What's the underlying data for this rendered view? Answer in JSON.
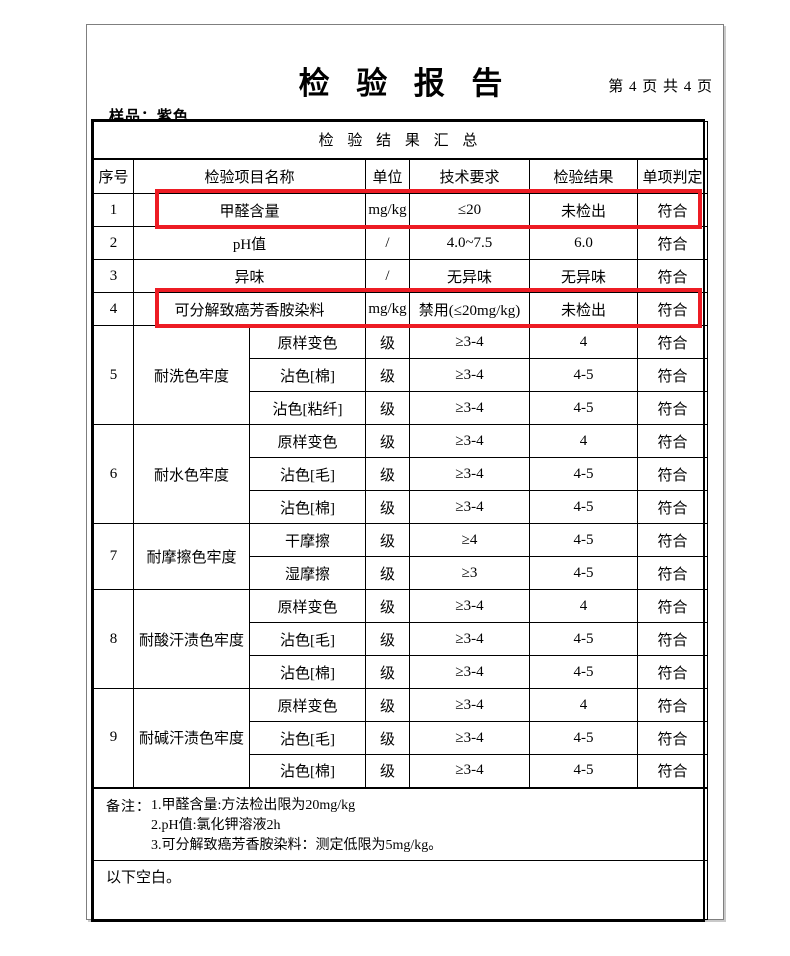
{
  "header": {
    "title": "检 验 报 告",
    "page_info": "第 4 页 共 4 页",
    "sample_label": "样品：紫色"
  },
  "table": {
    "title": "检 验 结 果 汇 总",
    "headers": [
      "序号",
      "检验项目名称",
      "单位",
      "技术要求",
      "检验结果",
      "单项判定"
    ],
    "rows": [
      {
        "no": "1",
        "name": "甲醛含量",
        "unit": "mg/kg",
        "requirement": "≤20",
        "result": "未检出",
        "judgment": "符合",
        "highlight": true
      },
      {
        "no": "2",
        "name": "pH值",
        "unit": "/",
        "requirement": "4.0~7.5",
        "result": "6.0",
        "judgment": "符合"
      },
      {
        "no": "3",
        "name": "异味",
        "unit": "/",
        "requirement": "无异味",
        "result": "无异味",
        "judgment": "符合"
      },
      {
        "no": "4",
        "name": "可分解致癌芳香胺染料",
        "unit": "mg/kg",
        "requirement": "禁用(≤20mg/kg)",
        "result": "未检出",
        "judgment": "符合",
        "highlight": true
      },
      {
        "no": "5",
        "group": "耐洗色牢度",
        "subs": [
          {
            "name": "原样变色",
            "unit": "级",
            "requirement": "≥3-4",
            "result": "4",
            "judgment": "符合"
          },
          {
            "name": "沾色[棉]",
            "unit": "级",
            "requirement": "≥3-4",
            "result": "4-5",
            "judgment": "符合"
          },
          {
            "name": "沾色[粘纤]",
            "unit": "级",
            "requirement": "≥3-4",
            "result": "4-5",
            "judgment": "符合"
          }
        ]
      },
      {
        "no": "6",
        "group": "耐水色牢度",
        "subs": [
          {
            "name": "原样变色",
            "unit": "级",
            "requirement": "≥3-4",
            "result": "4",
            "judgment": "符合"
          },
          {
            "name": "沾色[毛]",
            "unit": "级",
            "requirement": "≥3-4",
            "result": "4-5",
            "judgment": "符合"
          },
          {
            "name": "沾色[棉]",
            "unit": "级",
            "requirement": "≥3-4",
            "result": "4-5",
            "judgment": "符合"
          }
        ]
      },
      {
        "no": "7",
        "group": "耐摩擦色牢度",
        "subs": [
          {
            "name": "干摩擦",
            "unit": "级",
            "requirement": "≥4",
            "result": "4-5",
            "judgment": "符合"
          },
          {
            "name": "湿摩擦",
            "unit": "级",
            "requirement": "≥3",
            "result": "4-5",
            "judgment": "符合"
          }
        ]
      },
      {
        "no": "8",
        "group": "耐酸汗渍色牢度",
        "subs": [
          {
            "name": "原样变色",
            "unit": "级",
            "requirement": "≥3-4",
            "result": "4",
            "judgment": "符合"
          },
          {
            "name": "沾色[毛]",
            "unit": "级",
            "requirement": "≥3-4",
            "result": "4-5",
            "judgment": "符合"
          },
          {
            "name": "沾色[棉]",
            "unit": "级",
            "requirement": "≥3-4",
            "result": "4-5",
            "judgment": "符合"
          }
        ]
      },
      {
        "no": "9",
        "group": "耐碱汗渍色牢度",
        "subs": [
          {
            "name": "原样变色",
            "unit": "级",
            "requirement": "≥3-4",
            "result": "4",
            "judgment": "符合"
          },
          {
            "name": "沾色[毛]",
            "unit": "级",
            "requirement": "≥3-4",
            "result": "4-5",
            "judgment": "符合"
          },
          {
            "name": "沾色[棉]",
            "unit": "级",
            "requirement": "≥3-4",
            "result": "4-5",
            "judgment": "符合"
          }
        ]
      }
    ]
  },
  "notes": {
    "label": "备注：",
    "lines": [
      "1.甲醛含量:方法检出限为20mg/kg",
      "2.pH值:氯化钾溶液2h",
      "3.可分解致癌芳香胺染料：测定低限为5mg/kg。"
    ],
    "blank_text": "以下空白。"
  },
  "colors": {
    "highlight_red": "#ed1c24",
    "border_black": "#000000"
  }
}
